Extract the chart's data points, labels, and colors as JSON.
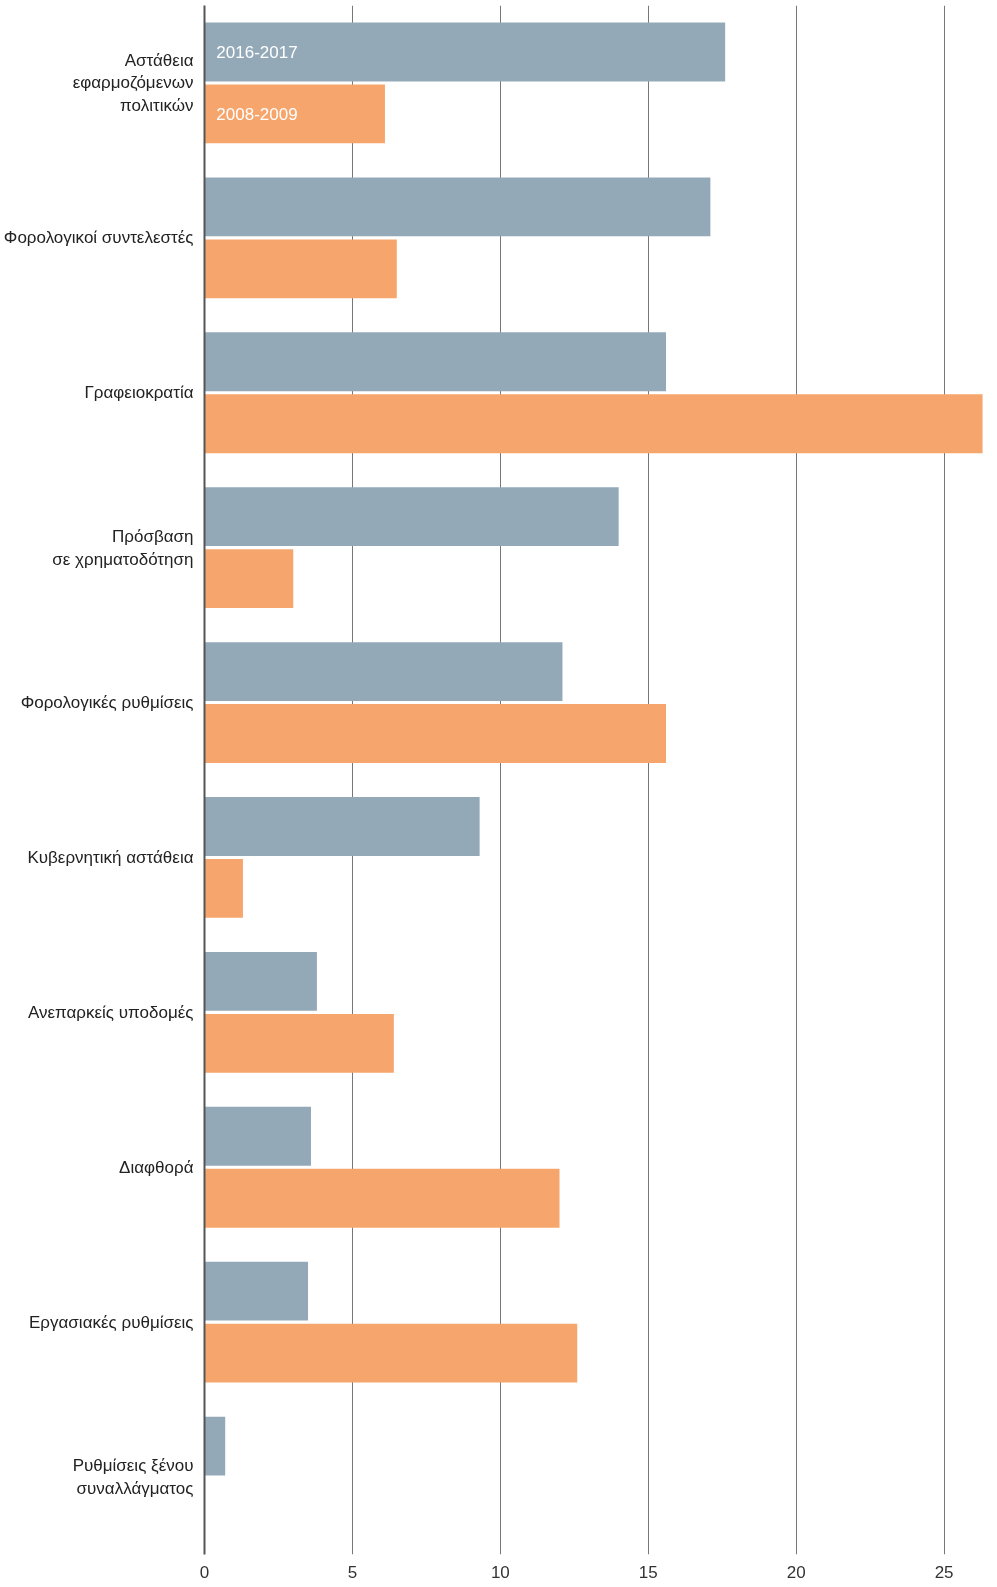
{
  "chart_data": {
    "type": "bar",
    "orientation": "horizontal",
    "categories": [
      "Αστάθεια\nεφαρμοζόμενων\nπολιτικών",
      "Φορολογικοί συντελεστές",
      "Γραφειοκρατία",
      "Πρόσβαση\nσε χρηματοδότηση",
      "Φορολογικές ρυθμίσεις",
      "Κυβερνητική αστάθεια",
      "Ανεπαρκείς υποδομές",
      "Διαφθορά",
      "Εργασιακές ρυθμίσεις",
      "Ρυθμίσεις ξένου\nσυναλλάγματος"
    ],
    "series": [
      {
        "name": "2016-2017",
        "color": "#93a9b8",
        "values": [
          17.6,
          17.1,
          15.6,
          14.0,
          12.1,
          9.3,
          3.8,
          3.6,
          3.5,
          0.7
        ]
      },
      {
        "name": "2008-2009",
        "color": "#f6a66c",
        "values": [
          6.1,
          6.5,
          26.3,
          3.0,
          15.6,
          1.3,
          6.4,
          12.0,
          12.6,
          null
        ]
      }
    ],
    "xlim": [
      0,
      26.4
    ],
    "xticks": [
      0,
      5,
      10,
      15,
      20,
      25
    ],
    "grid": "x"
  }
}
